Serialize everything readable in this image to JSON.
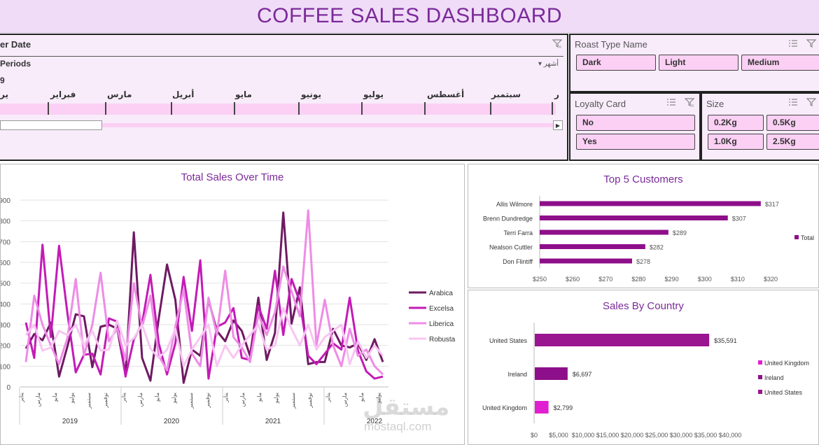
{
  "title": "COFFEE SALES DASHBOARD",
  "timeline": {
    "header": "er Date",
    "periods_label": "Periods",
    "year_label": "9",
    "months_selector": "أشهر",
    "months": [
      "ير",
      "فبراير",
      "مارس",
      "أبريل",
      "مايو",
      "يونيو",
      "يوليو",
      "أغسطس",
      "سبتمبر",
      "ر"
    ]
  },
  "roast_slicer": {
    "header": "Roast Type Name",
    "items": [
      "Dark",
      "Light",
      "Medium"
    ]
  },
  "loyalty_slicer": {
    "header": "Loyalty Card",
    "items": [
      "No",
      "Yes"
    ]
  },
  "size_slicer": {
    "header": "Size",
    "items": [
      "0.2Kg",
      "0.5Kg",
      "1.0Kg",
      "2.5Kg"
    ]
  },
  "colors": {
    "Arabica": "#6e1a62",
    "Excelsa": "#c31bb6",
    "Liberica": "#ee8ce6",
    "Robusta": "#f7c6f2",
    "bar": "#8e0f8a",
    "country_us": "#9a1590",
    "country_ie": "#8e0f8a",
    "country_uk": "#e020d0"
  },
  "line_chart": {
    "title": "Total Sales Over Time",
    "y_ticks": [
      "900",
      "800",
      "700",
      "600",
      "500",
      "400",
      "300",
      "200",
      "100",
      "0"
    ],
    "years": [
      "2019",
      "2020",
      "2021",
      "2022"
    ],
    "month_ticks": [
      "يناير",
      "مارس",
      "مايو",
      "يوليو",
      "سبتمبر",
      "نوفمبر"
    ],
    "legend": [
      "Arabica",
      "Excelsa",
      "Liberica",
      "Robusta"
    ]
  },
  "top_customers": {
    "title": "Top 5 Customers",
    "legend": "Total",
    "x_ticks": [
      "$250",
      "$260",
      "$270",
      "$280",
      "$290",
      "$300",
      "$310",
      "$320"
    ]
  },
  "country_chart": {
    "title": "Sales By Country",
    "legend": [
      "United Kingdom",
      "Ireland",
      "United States"
    ],
    "x_ticks": [
      "$0",
      "$5,000",
      "$10,000",
      "$15,000",
      "$20,000",
      "$25,000",
      "$30,000",
      "$35,000",
      "$40,000"
    ]
  },
  "chart_data": [
    {
      "type": "line",
      "title": "Total Sales Over Time",
      "xlabel": "",
      "ylabel": "",
      "ylim": [
        0,
        900
      ],
      "grid": true,
      "legend_position": "right",
      "x": [
        "2019-01",
        "2019-02",
        "2019-03",
        "2019-04",
        "2019-05",
        "2019-06",
        "2019-07",
        "2019-08",
        "2019-09",
        "2019-10",
        "2019-11",
        "2019-12",
        "2020-01",
        "2020-02",
        "2020-03",
        "2020-04",
        "2020-05",
        "2020-06",
        "2020-07",
        "2020-08",
        "2020-09",
        "2020-10",
        "2020-11",
        "2020-12",
        "2021-01",
        "2021-02",
        "2021-03",
        "2021-04",
        "2021-05",
        "2021-06",
        "2021-07",
        "2021-08",
        "2021-09",
        "2021-10",
        "2021-11",
        "2021-12",
        "2022-01",
        "2022-02",
        "2022-03",
        "2022-04",
        "2022-05",
        "2022-06",
        "2022-07",
        "2022-08"
      ],
      "series": [
        {
          "name": "Arabica",
          "values": [
            185,
            255,
            225,
            310,
            50,
            195,
            350,
            340,
            95,
            290,
            300,
            280,
            60,
            745,
            140,
            30,
            330,
            590,
            420,
            20,
            180,
            150,
            420,
            270,
            220,
            320,
            270,
            150,
            430,
            130,
            260,
            840,
            305,
            480,
            110,
            120,
            120,
            280,
            200,
            190,
            210,
            130,
            230,
            120
          ]
        },
        {
          "name": "Excelsa",
          "values": [
            310,
            140,
            685,
            240,
            680,
            355,
            70,
            155,
            160,
            60,
            330,
            315,
            50,
            230,
            305,
            540,
            210,
            60,
            210,
            530,
            270,
            610,
            40,
            290,
            310,
            380,
            140,
            130,
            390,
            280,
            560,
            250,
            520,
            410,
            150,
            110,
            160,
            210,
            180,
            430,
            175,
            75,
            40,
            50
          ]
        },
        {
          "name": "Liberica",
          "values": [
            120,
            440,
            300,
            200,
            110,
            235,
            520,
            150,
            300,
            550,
            220,
            280,
            130,
            500,
            290,
            440,
            150,
            80,
            290,
            470,
            160,
            100,
            430,
            250,
            560,
            240,
            190,
            120,
            350,
            250,
            360,
            580,
            460,
            340,
            850,
            200,
            420,
            200,
            100,
            280,
            150,
            180,
            100,
            60
          ]
        },
        {
          "name": "Robusta",
          "values": [
            250,
            300,
            175,
            190,
            270,
            250,
            300,
            200,
            270,
            175,
            180,
            320,
            200,
            235,
            300,
            185,
            140,
            180,
            280,
            100,
            180,
            240,
            300,
            100,
            200,
            140,
            200,
            250,
            300,
            180,
            200,
            380,
            280,
            200,
            300,
            180,
            240,
            270,
            300,
            110,
            220,
            140,
            200,
            150
          ]
        }
      ]
    },
    {
      "type": "bar",
      "title": "Top 5 Customers",
      "categories": [
        "Allis Wilmore",
        "Brenn Dundredge",
        "Terri Farra",
        "Nealson Cuttler",
        "Don Flintiff"
      ],
      "values": [
        317,
        307,
        289,
        282,
        278
      ],
      "value_labels": [
        "$317",
        "$307",
        "$289",
        "$282",
        "$278"
      ],
      "xlim": [
        250,
        320
      ],
      "series_name": "Total",
      "orientation": "horizontal"
    },
    {
      "type": "bar",
      "title": "Sales By Country",
      "categories": [
        "United States",
        "Ireland",
        "United Kingdom"
      ],
      "values": [
        35591,
        6697,
        2799
      ],
      "value_labels": [
        "$35,591",
        "$6,697",
        "$2,799"
      ],
      "xlim": [
        0,
        40000
      ],
      "orientation": "horizontal"
    }
  ]
}
